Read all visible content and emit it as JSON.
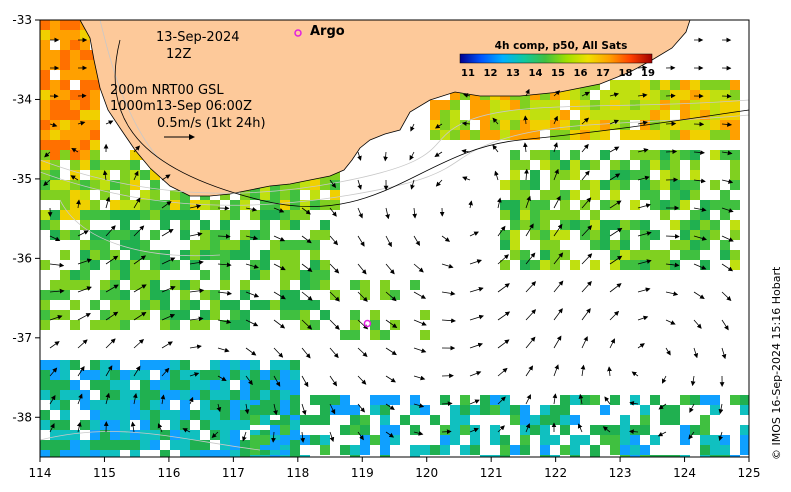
{
  "map": {
    "lon_range": [
      114,
      125
    ],
    "lat_range": [
      -38.5,
      -33
    ],
    "x_ticks": [
      "114",
      "115",
      "116",
      "117",
      "118",
      "119",
      "120",
      "121",
      "122",
      "123",
      "124",
      "125"
    ],
    "y_ticks": [
      "-33",
      "-34",
      "-35",
      "-36",
      "-37",
      "-38"
    ],
    "colors": {
      "land": "#fdc99a",
      "ocean_bg": "#ffffff",
      "frame": "#000000"
    }
  },
  "annotations": {
    "date": "13-Sep-2024",
    "time": "12Z",
    "depth_line1": "200m  NRT00 GSL",
    "depth_line2": "1000m13-Sep 06:00Z",
    "scale_label": "0.5m/s (1kt 24h)"
  },
  "argo": {
    "label": "Argo",
    "float_lon": 119.08,
    "float_lat": -36.82,
    "marker_color": "#e020e0"
  },
  "colorbar": {
    "title": "4h comp, p50, All Sats",
    "min": 11,
    "max": 19,
    "ticks": [
      "11",
      "12",
      "13",
      "14",
      "15",
      "16",
      "17",
      "18",
      "19"
    ],
    "colors": [
      "#00008f",
      "#0055ff",
      "#00b0ff",
      "#10c8a0",
      "#40c040",
      "#a0e000",
      "#f0e000",
      "#ffa000",
      "#ff4000",
      "#a00000"
    ]
  },
  "credit": "© IMOS 16-Sep-2024 15:16 Hobart"
}
